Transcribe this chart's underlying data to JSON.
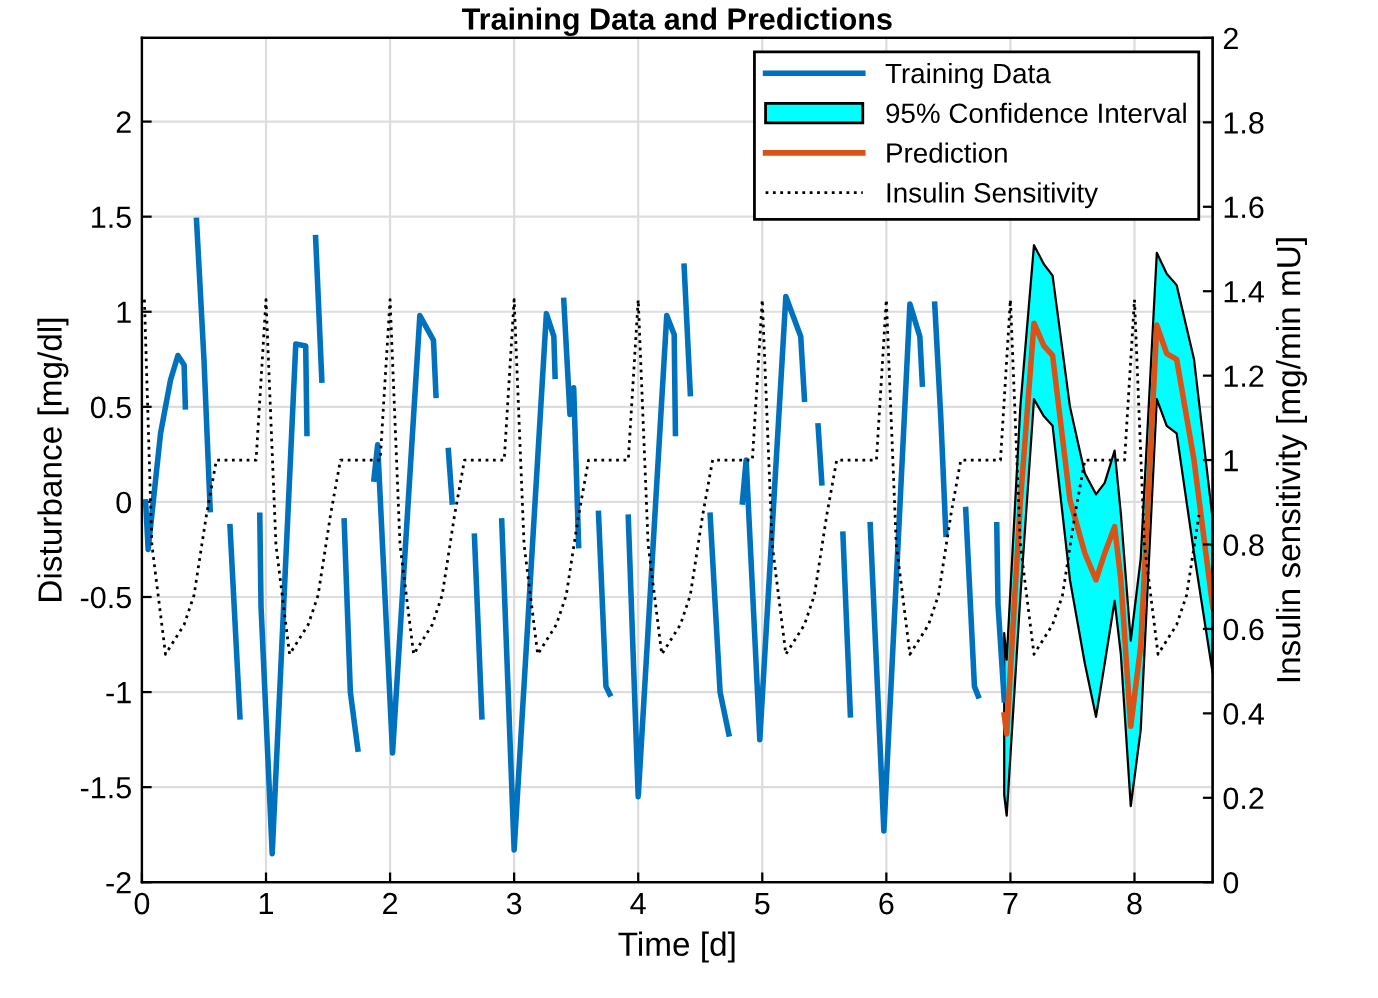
{
  "chart_data": {
    "type": "line",
    "title": "Training Data and Predictions",
    "xlabel": "Time [d]",
    "ylabel": "Disturbance [mg/dl]",
    "y2label": "Insulin sensitivity [mg/min mU]",
    "xlim": [
      0,
      8.63
    ],
    "xticks": [
      0,
      1,
      2,
      3,
      4,
      5,
      6,
      7,
      8
    ],
    "ylim": [
      -2,
      2.44
    ],
    "yticks": [
      -2,
      -1.5,
      -1,
      -0.5,
      0,
      0.5,
      1,
      1.5,
      2
    ],
    "y2lim": [
      0,
      2
    ],
    "y2ticks": [
      0,
      0.2,
      0.4,
      0.6,
      0.8,
      1,
      1.2,
      1.4,
      1.6,
      1.8,
      2
    ],
    "grid": true,
    "legend": "top right",
    "series": [
      {
        "name": "Training Data",
        "color": "#0072bd",
        "line_style": "solid",
        "x": [
          0.03,
          0.05,
          0.15,
          0.23,
          0.29,
          0.34,
          0.35,
          0.4,
          0.44,
          0.5,
          0.55,
          0.6,
          0.71,
          0.79,
          0.85,
          0.95,
          0.96,
          1.05,
          1.24,
          1.32,
          1.33,
          1.37,
          1.4,
          1.45,
          1.5,
          1.63,
          1.68,
          1.74,
          1.8,
          1.87,
          1.9,
          2.02,
          2.24,
          2.35,
          2.37,
          2.42,
          2.47,
          2.5,
          2.6,
          2.68,
          2.74,
          2.8,
          2.9,
          3.0,
          3.26,
          3.32,
          3.33,
          3.37,
          3.4,
          3.45,
          3.48,
          3.52,
          3.6,
          3.68,
          3.74,
          3.77,
          3.85,
          3.92,
          4.0,
          4.23,
          4.29,
          4.3,
          4.33,
          4.37,
          4.42,
          4.5,
          4.58,
          4.66,
          4.73,
          4.8,
          4.84,
          4.87,
          4.98,
          5.19,
          5.31,
          5.34,
          5.4,
          5.45,
          5.48,
          5.55,
          5.65,
          5.71,
          5.8,
          5.87,
          5.98,
          6.19,
          6.27,
          6.29,
          6.33,
          6.39,
          6.44,
          6.48,
          6.55,
          6.64,
          6.71,
          6.74,
          6.8,
          6.89,
          6.9,
          6.95
        ],
        "values": [
          0,
          -0.25,
          0.36,
          0.64,
          0.77,
          0.72,
          0.5,
          null,
          1.48,
          0.75,
          -0.04,
          null,
          -0.13,
          -1.13,
          null,
          -0.07,
          -0.55,
          -1.85,
          0.83,
          0.82,
          0.36,
          null,
          1.39,
          0.64,
          null,
          -0.1,
          -1.0,
          -1.3,
          null,
          0.12,
          0.3,
          -1.32,
          0.98,
          0.85,
          0.56,
          null,
          0.27,
          0.0,
          null,
          -0.18,
          -1.13,
          null,
          -0.1,
          -1.83,
          0.99,
          0.87,
          0.66,
          null,
          1.06,
          0.46,
          0.6,
          -0.23,
          null,
          -0.06,
          -0.97,
          -1.01,
          null,
          -0.08,
          -1.55,
          0.98,
          0.88,
          0.36,
          null,
          1.24,
          0.57,
          null,
          -0.07,
          -1.0,
          -1.22,
          null,
          0,
          0.22,
          -1.25,
          1.08,
          0.87,
          0.54,
          null,
          0.4,
          0.1,
          null,
          -0.17,
          -1.12,
          null,
          -0.12,
          -1.73,
          1.04,
          0.87,
          0.62,
          null,
          1.04,
          0.43,
          -0.17,
          null,
          -0.04,
          -0.97,
          -1.02,
          null,
          -0.12,
          -0.54,
          -1.04
        ]
      },
      {
        "name": "95% Confidence Interval",
        "color": "#00ffff",
        "x": [
          6.95,
          6.97,
          7.08,
          7.19,
          7.27,
          7.34,
          7.48,
          7.6,
          7.69,
          7.76,
          7.84,
          7.89,
          7.97,
          8.05,
          8.18,
          8.26,
          8.34,
          8.48,
          8.63
        ],
        "values": [
          null,
          null,
          null,
          null,
          null,
          null,
          null,
          null,
          null,
          null,
          null,
          null,
          null,
          null,
          null,
          null,
          null,
          null,
          null
        ],
        "lower": [
          -1.54,
          -1.65,
          -0.5,
          0.54,
          0.45,
          0.4,
          -0.41,
          -0.85,
          -1.13,
          -0.85,
          -0.52,
          -0.8,
          -1.6,
          -1.2,
          0.54,
          0.4,
          0.36,
          -0.27,
          -0.9
        ],
        "upper": [
          -0.69,
          -0.83,
          0.5,
          1.35,
          1.25,
          1.19,
          0.5,
          0.15,
          0.04,
          0.1,
          0.27,
          -0.06,
          -0.73,
          -0.3,
          1.31,
          1.2,
          1.14,
          0.75,
          -0.09
        ]
      },
      {
        "name": "Prediction",
        "type": "line",
        "color": "#d95319",
        "line_style": "solid",
        "x": [
          6.95,
          6.97,
          7.08,
          7.19,
          7.27,
          7.34,
          7.48,
          7.6,
          7.69,
          7.76,
          7.84,
          7.89,
          7.97,
          8.05,
          8.18,
          8.26,
          8.34,
          8.48,
          8.63
        ],
        "values": [
          -1.12,
          -1.22,
          0.0,
          0.94,
          0.82,
          0.77,
          0.01,
          -0.27,
          -0.41,
          -0.27,
          -0.13,
          -0.41,
          -1.18,
          -0.76,
          0.93,
          0.78,
          0.75,
          0.22,
          -0.55
        ]
      },
      {
        "name": "Insulin Sensitivity",
        "axis": "y2",
        "color": "#000000",
        "line_style": "dotted",
        "x": [
          0.02,
          0.08,
          0.19,
          0.34,
          0.42,
          0.52,
          0.6,
          0.92,
          1.0,
          1.08,
          1.19,
          1.34,
          1.42,
          1.52,
          1.6,
          1.92,
          2.0,
          2.08,
          2.19,
          2.34,
          2.42,
          2.52,
          2.6,
          2.92,
          3.0,
          3.08,
          3.19,
          3.34,
          3.42,
          3.52,
          3.6,
          3.92,
          4.0,
          4.08,
          4.19,
          4.34,
          4.42,
          4.52,
          4.6,
          4.92,
          5.0,
          5.08,
          5.19,
          5.34,
          5.42,
          5.52,
          5.6,
          5.92,
          6.0,
          6.08,
          6.19,
          6.34,
          6.42,
          6.52,
          6.6,
          6.92,
          7.0,
          7.08,
          7.19,
          7.34,
          7.42,
          7.52,
          7.6,
          7.92,
          8.0,
          8.08,
          8.19,
          8.34,
          8.42,
          8.52
        ],
        "values": [
          1.38,
          0.8,
          0.54,
          0.61,
          0.68,
          0.87,
          1.0,
          1.0,
          1.38,
          0.8,
          0.54,
          0.61,
          0.68,
          0.87,
          1.0,
          1.0,
          1.38,
          0.8,
          0.54,
          0.61,
          0.68,
          0.87,
          1.0,
          1.0,
          1.38,
          0.8,
          0.54,
          0.61,
          0.68,
          0.87,
          1.0,
          1.0,
          1.38,
          0.8,
          0.54,
          0.61,
          0.68,
          0.87,
          1.0,
          1.0,
          1.38,
          0.8,
          0.54,
          0.61,
          0.68,
          0.87,
          1.0,
          1.0,
          1.38,
          0.8,
          0.54,
          0.61,
          0.68,
          0.87,
          1.0,
          1.0,
          1.38,
          0.8,
          0.54,
          0.61,
          0.68,
          0.87,
          1.0,
          1.0,
          1.38,
          0.8,
          0.54,
          0.61,
          0.68,
          0.87
        ]
      }
    ]
  }
}
